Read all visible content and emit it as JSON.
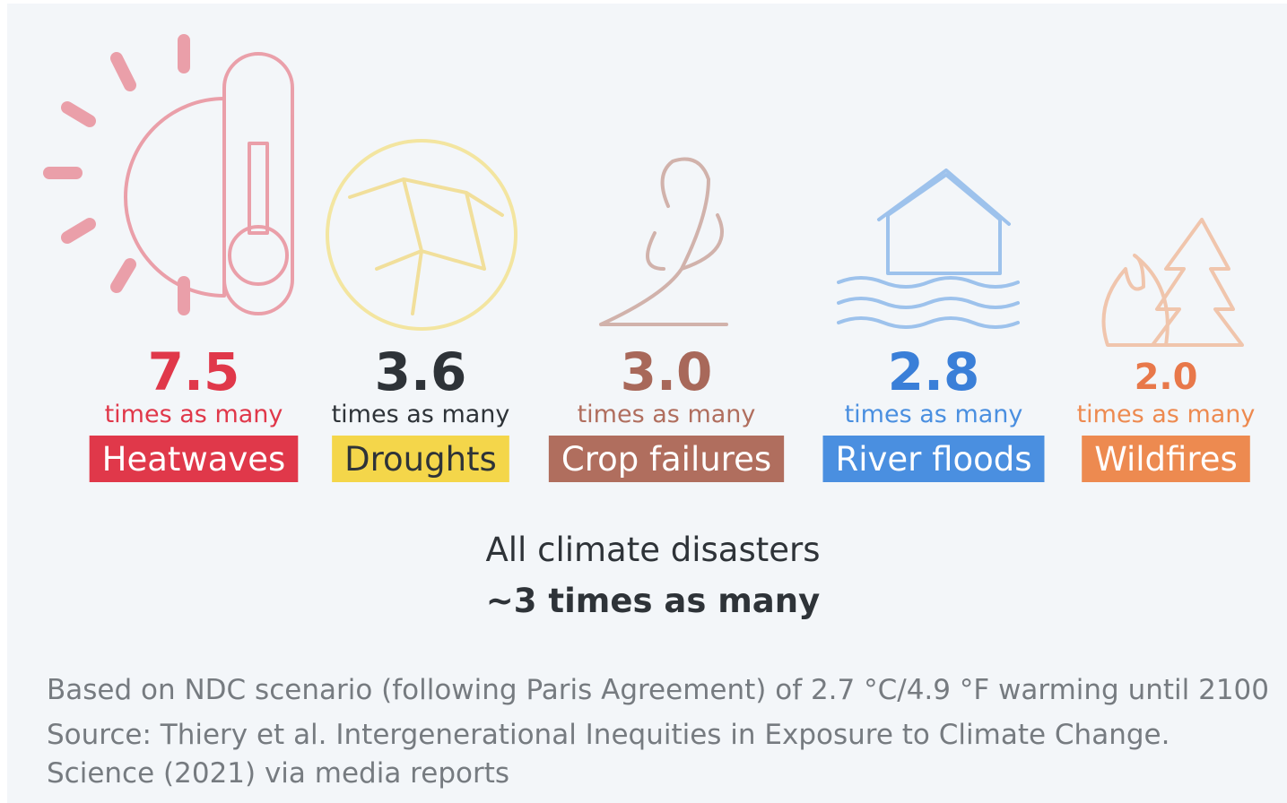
{
  "items": [
    {
      "value": "7.5",
      "unit": "times as many",
      "label": "Heatwaves",
      "color": "#e0384a",
      "value_color": "#e0384a",
      "label_text_color": "#ffffff"
    },
    {
      "value": "3.6",
      "unit": "times as many",
      "label": "Droughts",
      "color": "#f4d64a",
      "value_color": "#2e3338",
      "label_text_color": "#2e3338"
    },
    {
      "value": "3.0",
      "unit": "times as many",
      "label": "Crop failures",
      "color": "#b06e5e",
      "value_color": "#a8685a",
      "label_text_color": "#ffffff"
    },
    {
      "value": "2.8",
      "unit": "times as many",
      "label": "River floods",
      "color": "#4a8fe0",
      "value_color": "#3a7fd8",
      "label_text_color": "#ffffff"
    },
    {
      "value": "2.0",
      "unit": "times as many",
      "label": "Wildfires",
      "color": "#ed8a50",
      "value_color": "#e8784a",
      "label_text_color": "#ffffff"
    }
  ],
  "summary": {
    "title": "All climate disasters",
    "value": "~3 times as many"
  },
  "notes": [
    "Based on NDC scenario (following Paris Agreement) of 2.7 °C/4.9 °F warming until 2100",
    "Source: Thiery et al. Intergenerational Inequities in Exposure to Climate Change.",
    "Science (2021) via media reports"
  ]
}
